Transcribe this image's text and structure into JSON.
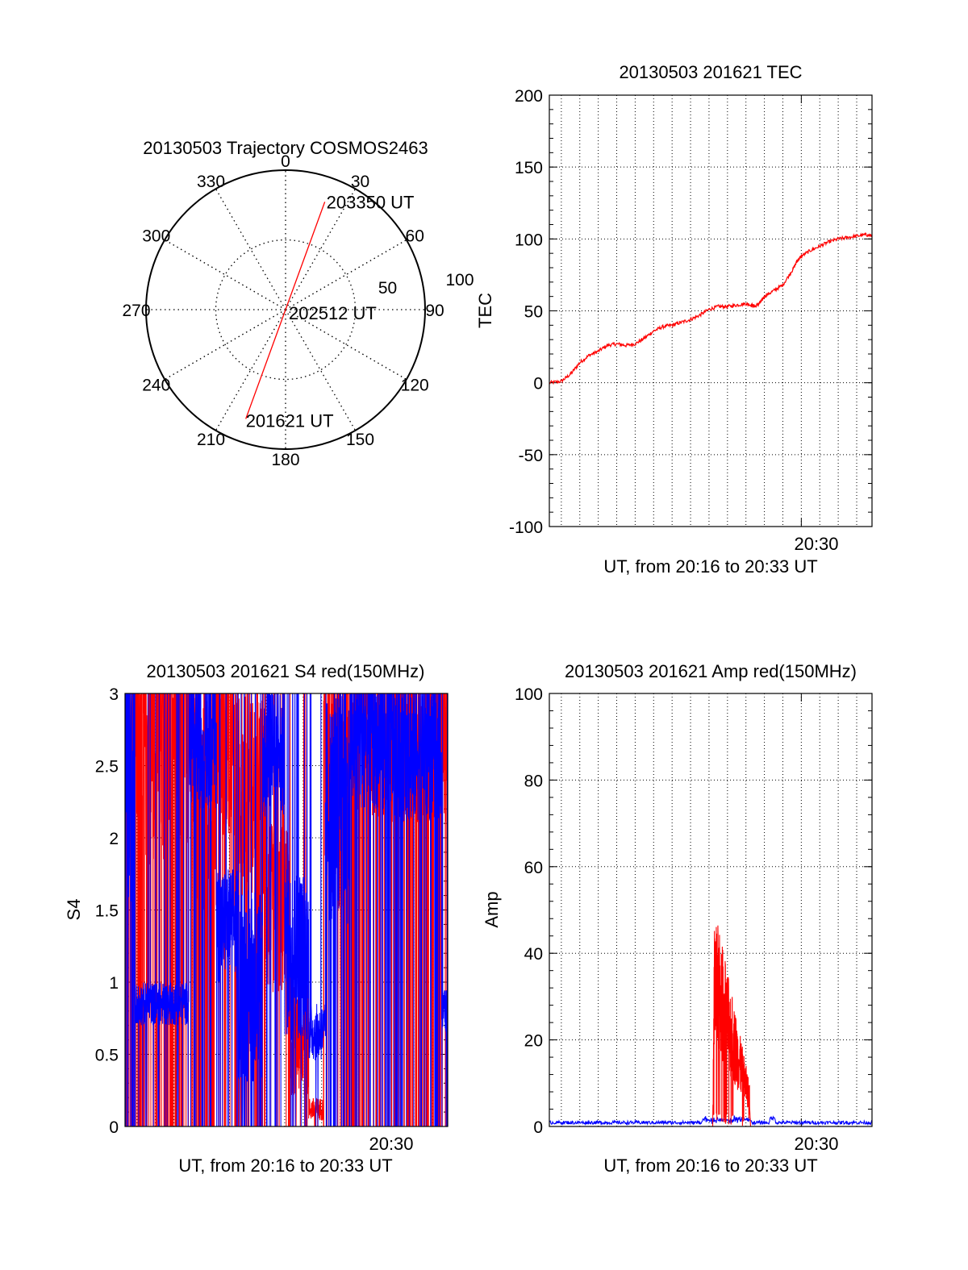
{
  "colors": {
    "red": "#ff0000",
    "blue": "#0000ff",
    "axis": "#000000",
    "grid": "#000000"
  },
  "chart_data": [
    {
      "id": "trajectory",
      "type": "polar",
      "title": "20130503 Trajectory COSMOS2463",
      "azimuth_labels": [
        "0",
        "30",
        "60",
        "90",
        "120",
        "150",
        "180",
        "210",
        "240",
        "270",
        "300",
        "330"
      ],
      "radial_labels": [
        "50",
        "100"
      ],
      "radial_range": [
        0,
        100
      ],
      "track": {
        "color": "red",
        "points": [
          {
            "az": 200,
            "el": 15,
            "label": "201621 UT"
          },
          {
            "az": 0,
            "el": 90,
            "label": "202512 UT"
          },
          {
            "az": 20,
            "el": 16,
            "label": "203350 UT"
          }
        ]
      }
    },
    {
      "id": "tec",
      "type": "line",
      "title": "20130503 201621 TEC",
      "xlabel": "UT, from 20:16 to 20:33 UT",
      "ylabel": "TEC",
      "xlim": [
        16.35,
        33.83
      ],
      "ylim": [
        -100,
        200
      ],
      "yticks": [
        "-100",
        "-50",
        "0",
        "50",
        "100",
        "150",
        "200"
      ],
      "xtick_label": "20:30",
      "xtick_value": 30,
      "grid": true,
      "series": [
        {
          "name": "TEC",
          "color": "red",
          "x": [
            16.35,
            17.0,
            17.5,
            18.0,
            18.5,
            19.0,
            19.5,
            20.0,
            20.5,
            21.0,
            21.5,
            22.0,
            22.5,
            23.0,
            23.5,
            24.0,
            24.5,
            25.0,
            25.5,
            26.0,
            26.5,
            27.0,
            27.3,
            27.5,
            27.8,
            28.0,
            28.5,
            29.0,
            29.5,
            29.8,
            30.0,
            30.5,
            31.0,
            31.5,
            32.0,
            32.5,
            33.0,
            33.5,
            33.83
          ],
          "y": [
            0,
            1,
            6,
            14,
            19,
            22,
            26,
            27,
            26,
            27,
            31,
            36,
            39,
            40,
            42,
            44,
            47,
            51,
            53,
            53,
            54,
            55,
            54,
            53,
            56,
            60,
            64,
            68,
            78,
            85,
            88,
            92,
            95,
            98,
            100,
            101,
            102,
            103,
            102
          ]
        }
      ]
    },
    {
      "id": "s4",
      "type": "line",
      "title": "20130503 201621 S4 red(150MHz)",
      "xlabel": "UT, from 20:16 to 20:33 UT",
      "ylabel": "S4",
      "xlim": [
        16.35,
        33.83
      ],
      "ylim": [
        0,
        3
      ],
      "yticks": [
        "0",
        "0.5",
        "1",
        "1.5",
        "2",
        "2.5",
        "3"
      ],
      "xtick_label": "20:30",
      "xtick_value": 30,
      "grid": true,
      "series": [
        {
          "name": "red",
          "color": "red",
          "segments": [
            {
              "x0": 16.35,
              "x1": 20.1,
              "base": 2.7,
              "spread": 0.9,
              "spikes": 0.35
            },
            {
              "x0": 20.1,
              "x1": 21.3,
              "base": 2.2,
              "spread": 0.8,
              "spikes": 0.25
            },
            {
              "x0": 21.3,
              "x1": 22.5,
              "base": 2.6,
              "spread": 0.6,
              "spikes": 0.3
            },
            {
              "x0": 22.5,
              "x1": 24.0,
              "base": 2.3,
              "spread": 0.7,
              "spikes": 0.25
            },
            {
              "x0": 24.0,
              "x1": 25.3,
              "base": 1.5,
              "spread": 0.6,
              "spikes": 0.2
            },
            {
              "x0": 25.3,
              "x1": 26.3,
              "base": 0.6,
              "spread": 0.4,
              "spikes": 0.1
            },
            {
              "x0": 26.3,
              "x1": 27.1,
              "base": 0.12,
              "spread": 0.08,
              "spikes": 0.05
            },
            {
              "x0": 27.1,
              "x1": 28.5,
              "base": 2.3,
              "spread": 0.9,
              "spikes": 0.3
            },
            {
              "x0": 28.5,
              "x1": 33.83,
              "base": 2.7,
              "spread": 0.6,
              "spikes": 0.35
            }
          ]
        },
        {
          "name": "blue",
          "color": "blue",
          "segments": [
            {
              "x0": 16.35,
              "x1": 16.9,
              "base": 2.4,
              "spread": 0.9,
              "spikes": 0.2
            },
            {
              "x0": 16.9,
              "x1": 19.8,
              "base": 0.85,
              "spread": 0.15,
              "spikes": 0.08
            },
            {
              "x0": 19.8,
              "x1": 21.3,
              "base": 2.7,
              "spread": 0.5,
              "spikes": 0.2
            },
            {
              "x0": 21.3,
              "x1": 22.5,
              "base": 1.4,
              "spread": 0.4,
              "spikes": 0.15
            },
            {
              "x0": 22.5,
              "x1": 23.8,
              "base": 1.0,
              "spread": 0.7,
              "spikes": 0.15
            },
            {
              "x0": 23.8,
              "x1": 25.0,
              "base": 2.6,
              "spread": 0.5,
              "spikes": 0.15
            },
            {
              "x0": 25.0,
              "x1": 26.3,
              "base": 1.2,
              "spread": 0.6,
              "spikes": 0.1
            },
            {
              "x0": 26.3,
              "x1": 27.2,
              "base": 0.65,
              "spread": 0.2,
              "spikes": 0.05
            },
            {
              "x0": 27.2,
              "x1": 28.5,
              "base": 2.2,
              "spread": 0.8,
              "spikes": 0.2
            },
            {
              "x0": 28.5,
              "x1": 30.8,
              "base": 2.7,
              "spread": 0.5,
              "spikes": 0.25
            },
            {
              "x0": 30.8,
              "x1": 33.5,
              "base": 2.6,
              "spread": 0.5,
              "spikes": 0.2
            },
            {
              "x0": 33.5,
              "x1": 33.83,
              "base": 0.8,
              "spread": 0.15,
              "spikes": 0.05
            }
          ]
        }
      ]
    },
    {
      "id": "amp",
      "type": "line",
      "title": "20130503 201621 Amp red(150MHz)",
      "xlabel": "UT, from 20:16 to 20:33 UT",
      "ylabel": "Amp",
      "xlim": [
        16.35,
        33.83
      ],
      "ylim": [
        0,
        100
      ],
      "yticks": [
        "0",
        "20",
        "40",
        "60",
        "80",
        "100"
      ],
      "xtick_label": "20:30",
      "xtick_value": 30,
      "grid": true,
      "series": [
        {
          "name": "red",
          "color": "red",
          "burst": {
            "x0": 25.2,
            "x1": 27.2,
            "peak": 51,
            "peak_x": 25.3,
            "tail": 10
          }
        },
        {
          "name": "blue",
          "color": "blue",
          "baseline": 0.5,
          "noise": 0.8
        }
      ]
    }
  ]
}
